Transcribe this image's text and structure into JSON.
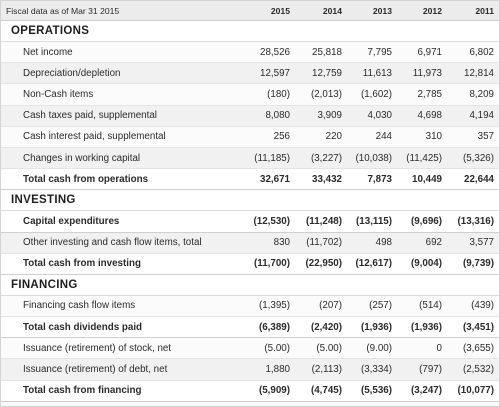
{
  "header": {
    "caption": "Fiscal data as of Mar 31 2015",
    "years": [
      "2015",
      "2014",
      "2013",
      "2012",
      "2011"
    ]
  },
  "sections": [
    {
      "title": "OPERATIONS",
      "rows": [
        {
          "label": "Net income",
          "values": [
            "28,526",
            "25,818",
            "7,795",
            "6,971",
            "6,802"
          ],
          "total": false
        },
        {
          "label": "Depreciation/depletion",
          "values": [
            "12,597",
            "12,759",
            "11,613",
            "11,973",
            "12,814"
          ],
          "total": false
        },
        {
          "label": "Non-Cash items",
          "values": [
            "(180)",
            "(2,013)",
            "(1,602)",
            "2,785",
            "8,209"
          ],
          "total": false
        },
        {
          "label": "Cash taxes paid, supplemental",
          "values": [
            "8,080",
            "3,909",
            "4,030",
            "4,698",
            "4,194"
          ],
          "total": false
        },
        {
          "label": "Cash interest paid, supplemental",
          "values": [
            "256",
            "220",
            "244",
            "310",
            "357"
          ],
          "total": false
        },
        {
          "label": "Changes in working capital",
          "values": [
            "(11,185)",
            "(3,227)",
            "(10,038)",
            "(11,425)",
            "(5,326)"
          ],
          "total": false
        },
        {
          "label": "Total cash from operations",
          "values": [
            "32,671",
            "33,432",
            "7,873",
            "10,449",
            "22,644"
          ],
          "total": true
        }
      ]
    },
    {
      "title": "INVESTING",
      "rows": [
        {
          "label": "Capital expenditures",
          "values": [
            "(12,530)",
            "(11,248)",
            "(13,115)",
            "(9,696)",
            "(13,316)"
          ],
          "total": true
        },
        {
          "label": "Other investing and cash flow items, total",
          "values": [
            "830",
            "(11,702)",
            "498",
            "692",
            "3,577"
          ],
          "total": false
        },
        {
          "label": "Total cash from investing",
          "values": [
            "(11,700)",
            "(22,950)",
            "(12,617)",
            "(9,004)",
            "(9,739)"
          ],
          "total": true
        }
      ]
    },
    {
      "title": "FINANCING",
      "rows": [
        {
          "label": "Financing cash flow items",
          "values": [
            "(1,395)",
            "(207)",
            "(257)",
            "(514)",
            "(439)"
          ],
          "total": false
        },
        {
          "label": "Total cash dividends paid",
          "values": [
            "(6,389)",
            "(2,420)",
            "(1,936)",
            "(1,936)",
            "(3,451)"
          ],
          "total": true
        },
        {
          "label": "Issuance (retirement) of stock, net",
          "values": [
            "(5.00)",
            "(5.00)",
            "(9.00)",
            "0",
            "(3,655)"
          ],
          "total": false
        },
        {
          "label": "Issuance (retirement) of debt, net",
          "values": [
            "1,880",
            "(2,113)",
            "(3,334)",
            "(797)",
            "(2,532)"
          ],
          "total": false
        },
        {
          "label": "Total cash from financing",
          "values": [
            "(5,909)",
            "(4,745)",
            "(5,536)",
            "(3,247)",
            "(10,077)"
          ],
          "total": true
        }
      ]
    }
  ]
}
